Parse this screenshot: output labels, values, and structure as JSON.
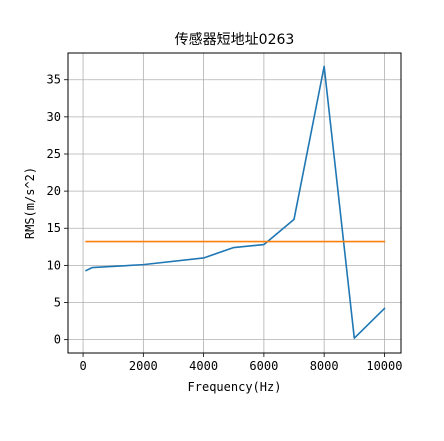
{
  "chart_data": {
    "type": "line",
    "title": "传感器短地址0263",
    "xlabel": "Frequency(Hz)",
    "ylabel": "RMS(m/s^2)",
    "xlim": [
      -500,
      10550
    ],
    "ylim": [
      -1.8,
      38.6
    ],
    "xticks": [
      0,
      2000,
      4000,
      6000,
      8000,
      10000
    ],
    "yticks": [
      0,
      5,
      10,
      15,
      20,
      25,
      30,
      35
    ],
    "grid": true,
    "series": [
      {
        "color": "#1f77b4",
        "x": [
          100,
          300,
          2000,
          4000,
          5000,
          6000,
          7000,
          8000,
          9000,
          10000
        ],
        "y": [
          9.3,
          9.7,
          10.1,
          11.0,
          12.4,
          12.8,
          16.2,
          36.8,
          0.2,
          4.2
        ]
      },
      {
        "color": "#ff7f0e",
        "x": [
          100,
          10000
        ],
        "y": [
          13.2,
          13.2
        ]
      }
    ]
  }
}
